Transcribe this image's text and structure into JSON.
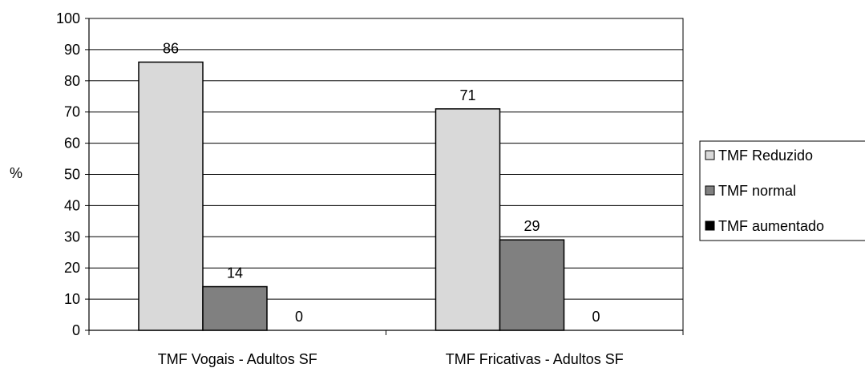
{
  "chart_data": {
    "type": "bar",
    "title": "",
    "xlabel": "",
    "ylabel": "%",
    "ylim": [
      0,
      100
    ],
    "yticks": [
      0,
      10,
      20,
      30,
      40,
      50,
      60,
      70,
      80,
      90,
      100
    ],
    "grid": true,
    "legend_position": "right",
    "categories": [
      "TMF Vogais - Adultos SF",
      "TMF Fricativas - Adultos SF"
    ],
    "series": [
      {
        "name": "TMF Reduzido",
        "color": "#d9d9d9",
        "values": [
          86,
          71
        ]
      },
      {
        "name": "TMF normal",
        "color": "#808080",
        "values": [
          14,
          29
        ]
      },
      {
        "name": "TMF aumentado",
        "color": "#000000",
        "values": [
          0,
          0
        ]
      }
    ]
  }
}
